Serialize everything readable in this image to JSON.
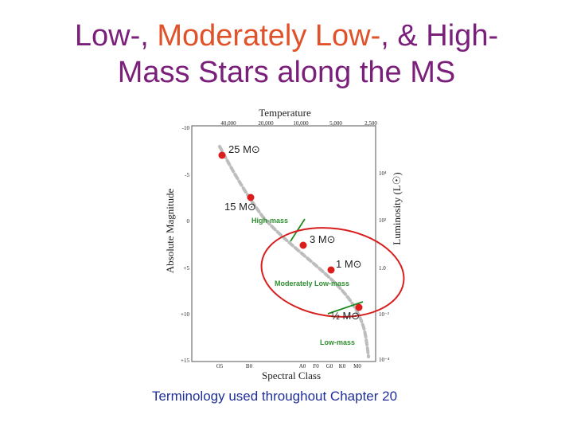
{
  "slide": {
    "title_line1_a": "Low-, ",
    "title_line1_b": "Moderately Low-",
    "title_line1_c": ", & High-",
    "title_line2": "Mass Stars along the MS",
    "caption": "Terminology used throughout Chapter 20"
  },
  "diagram": {
    "top_axis_title": "Temperature",
    "temperature_ticks": [
      "40,000",
      "20,000",
      "10,000",
      "5,000",
      "2,500"
    ],
    "left_axis_title": "Absolute Magnitude",
    "magnitude_ticks": [
      "-10",
      "-5",
      "0",
      "+5",
      "+10",
      "+15"
    ],
    "right_axis_title": "Luminosity (L☉)",
    "luminosity_ticks": [
      "10⁴",
      "10²",
      "1.0",
      "10⁻²",
      "10⁻⁴"
    ],
    "bottom_axis_title": "Spectral Class",
    "spectral_ticks": [
      "O5",
      "B0",
      "A0",
      "F0",
      "G0",
      "K0",
      "M0"
    ],
    "stars": [
      {
        "label": "25 M⊙",
        "mass_solar": 25
      },
      {
        "label": "15 M⊙",
        "mass_solar": 15
      },
      {
        "label": "3 M⊙",
        "mass_solar": 3
      },
      {
        "label": "1 M⊙",
        "mass_solar": 1
      },
      {
        "label": "½ M⊙",
        "mass_solar": 0.5
      }
    ],
    "regions": {
      "high": "High-mass",
      "moderate": "Moderately Low-mass",
      "low": "Low-mass"
    },
    "colors": {
      "star": "#dd1c1c",
      "ellipse": "#d81e1e",
      "divider": "#1f8a1f",
      "region_text": "#2f8f2f",
      "main_sequence": "#bdbdbd"
    }
  }
}
